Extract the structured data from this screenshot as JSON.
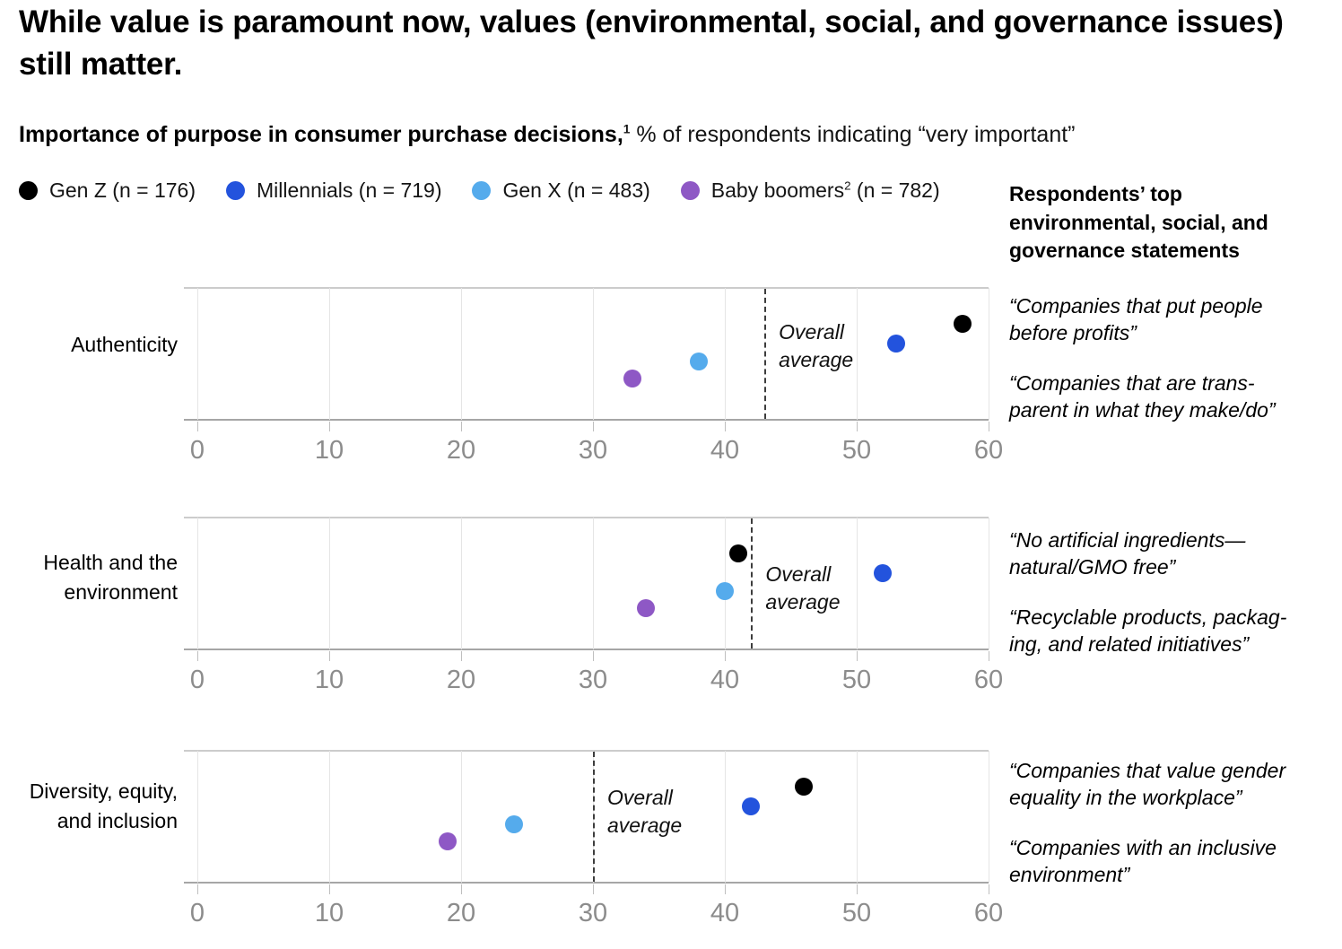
{
  "title": "While value is paramount now, values (environmental, social, and governance issues) still matter.",
  "subtitle": {
    "bold": "Importance of purpose in consumer purchase decisions,",
    "sup": "1",
    "regular": " % of respondents indicating “very important”"
  },
  "legend": {
    "items": [
      {
        "pre": "Gen Z",
        "sup": "",
        "post": " (n = 176)",
        "color": "#000000"
      },
      {
        "pre": "Millennials",
        "sup": "",
        "post": " (n = 719)",
        "color": "#2353dd"
      },
      {
        "pre": "Gen X",
        "sup": "",
        "post": " (n = 483)",
        "color": "#55abec"
      },
      {
        "pre": "Baby boomers",
        "sup": "2",
        "post": " (n = 782)",
        "color": "#8e58c5"
      }
    ]
  },
  "right_panel": {
    "header": "Respondents’ top\nenvironmental, social, and\ngovernance statements",
    "groups": [
      {
        "quotes": [
          "“Companies that put people\nbefore profits”",
          "“Companies that are trans-\nparent in what they make/do”"
        ]
      },
      {
        "quotes": [
          "“No artificial ingredients—\nnatural/GMO free”",
          "“Recyclable products, packag-\ning, and related initiatives”"
        ]
      },
      {
        "quotes": [
          "“Companies that value gender\nequality in the workplace”",
          "“Companies with an inclusive\nenvironment”"
        ]
      }
    ]
  },
  "labels": {
    "overall_average": "Overall\naverage"
  },
  "chart_data": {
    "type": "scatter",
    "title": "Importance of purpose in consumer purchase decisions, % of respondents indicating “very important”",
    "x_axis": {
      "min": 0,
      "max": 60,
      "ticks": [
        0,
        10,
        20,
        30,
        40,
        50,
        60
      ]
    },
    "grid": true,
    "series": [
      {
        "name": "Gen Z",
        "n": 176,
        "color": "#000000"
      },
      {
        "name": "Millennials",
        "n": 719,
        "color": "#2353dd"
      },
      {
        "name": "Gen X",
        "n": 483,
        "color": "#55abec"
      },
      {
        "name": "Baby boomers",
        "n": 782,
        "color": "#8e58c5"
      }
    ],
    "charts": [
      {
        "category": "Authenticity",
        "category_label": "Authenticity",
        "overall_average": 43,
        "values": {
          "Gen Z": 58,
          "Millennials": 53,
          "Gen X": 38,
          "Baby boomers": 33
        }
      },
      {
        "category": "Health and the environment",
        "category_label": "Health and the\nenvironment",
        "overall_average": 42,
        "values": {
          "Gen Z": 41,
          "Millennials": 52,
          "Gen X": 40,
          "Baby boomers": 34
        }
      },
      {
        "category": "Diversity, equity, and inclusion",
        "category_label": "Diversity, equity,\nand inclusion",
        "overall_average": 30,
        "values": {
          "Gen Z": 46,
          "Millennials": 42,
          "Gen X": 24,
          "Baby boomers": 19
        }
      }
    ]
  }
}
